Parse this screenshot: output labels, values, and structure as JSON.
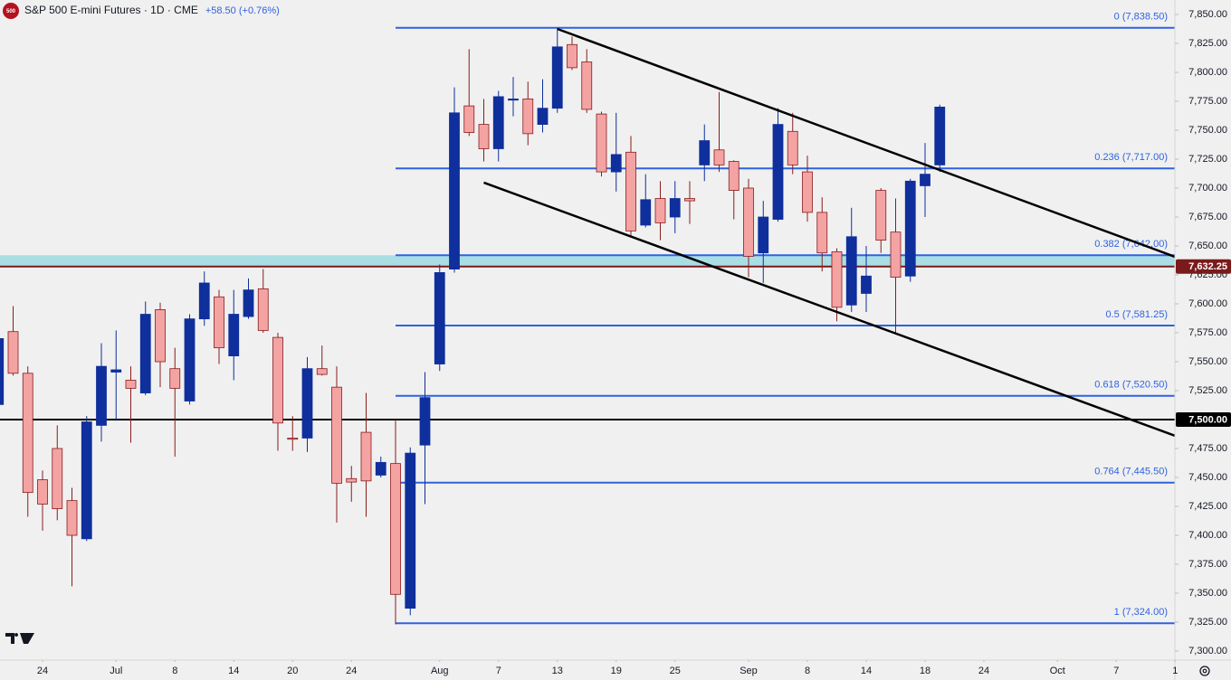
{
  "chart_data": {
    "type": "candlestick",
    "title": "S&P 500 E-mini Futures · 1D · CME",
    "change": "+58.50 (+0.76%)",
    "symbol_badge": "500",
    "up_color": "#0f2f9c",
    "down_color": "#f4a3a3",
    "down_edge": "#8a1c1c",
    "ylim": [
      7300,
      7850
    ],
    "yticks": [
      {
        "value": 7850,
        "label": "7,850.00"
      },
      {
        "value": 7825,
        "label": "7,825.00"
      },
      {
        "value": 7800,
        "label": "7,800.00"
      },
      {
        "value": 7775,
        "label": "7,775.00"
      },
      {
        "value": 7750,
        "label": "7,750.00"
      },
      {
        "value": 7725,
        "label": "7,725.00"
      },
      {
        "value": 7700,
        "label": "7,700.00"
      },
      {
        "value": 7675,
        "label": "7,675.00"
      },
      {
        "value": 7650,
        "label": "7,650.00"
      },
      {
        "value": 7625,
        "label": "7,625.00"
      },
      {
        "value": 7600,
        "label": "7,600.00"
      },
      {
        "value": 7575,
        "label": "7,575.00"
      },
      {
        "value": 7550,
        "label": "7,550.00"
      },
      {
        "value": 7525,
        "label": "7,525.00"
      },
      {
        "value": 7500,
        "label": "7,500.00"
      },
      {
        "value": 7475,
        "label": "7,475.00"
      },
      {
        "value": 7450,
        "label": "7,450.00"
      },
      {
        "value": 7425,
        "label": "7,425.00"
      },
      {
        "value": 7400,
        "label": "7,400.00"
      },
      {
        "value": 7375,
        "label": "7,375.00"
      },
      {
        "value": 7350,
        "label": "7,350.00"
      },
      {
        "value": 7325,
        "label": "7,325.00"
      },
      {
        "value": 7300,
        "label": "7,300.00"
      }
    ],
    "xlim": [
      -0.1,
      80
    ],
    "xticks": [
      {
        "value": 3,
        "label": "24"
      },
      {
        "value": 8,
        "label": "Jul"
      },
      {
        "value": 12,
        "label": "8"
      },
      {
        "value": 16,
        "label": "14"
      },
      {
        "value": 20,
        "label": "20"
      },
      {
        "value": 24,
        "label": "24"
      },
      {
        "value": 30,
        "label": "Aug"
      },
      {
        "value": 34,
        "label": "7"
      },
      {
        "value": 38,
        "label": "13"
      },
      {
        "value": 42,
        "label": "19"
      },
      {
        "value": 46,
        "label": "25"
      },
      {
        "value": 51,
        "label": "Sep"
      },
      {
        "value": 55,
        "label": "8"
      },
      {
        "value": 59,
        "label": "14"
      },
      {
        "value": 63,
        "label": "18"
      },
      {
        "value": 67,
        "label": "24"
      },
      {
        "value": 72,
        "label": "Oct"
      },
      {
        "value": 76,
        "label": "7"
      },
      {
        "value": 80,
        "label": "1"
      }
    ],
    "candles": [
      {
        "open": 7513,
        "high": 7577,
        "low": 7511,
        "close": 7570
      },
      {
        "open": 7576,
        "high": 7598,
        "low": 7538,
        "close": 7540
      },
      {
        "open": 7540,
        "high": 7546,
        "low": 7416,
        "close": 7437
      },
      {
        "open": 7448,
        "high": 7456,
        "low": 7404,
        "close": 7427
      },
      {
        "open": 7475,
        "high": 7495,
        "low": 7413,
        "close": 7423
      },
      {
        "open": 7430,
        "high": 7441,
        "low": 7356,
        "close": 7400
      },
      {
        "open": 7397,
        "high": 7503,
        "low": 7395,
        "close": 7498
      },
      {
        "open": 7495,
        "high": 7566,
        "low": 7481,
        "close": 7546
      },
      {
        "open": 7541,
        "high": 7577,
        "low": 7499,
        "close": 7543
      },
      {
        "open": 7534,
        "high": 7546,
        "low": 7480,
        "close": 7527
      },
      {
        "open": 7523,
        "high": 7602,
        "low": 7521,
        "close": 7591
      },
      {
        "open": 7595,
        "high": 7601,
        "low": 7528,
        "close": 7550
      },
      {
        "open": 7544,
        "high": 7562,
        "low": 7468,
        "close": 7527
      },
      {
        "open": 7516,
        "high": 7591,
        "low": 7513,
        "close": 7587
      },
      {
        "open": 7587,
        "high": 7628,
        "low": 7581,
        "close": 7618
      },
      {
        "open": 7606,
        "high": 7612,
        "low": 7548,
        "close": 7562
      },
      {
        "open": 7555,
        "high": 7612,
        "low": 7534,
        "close": 7591
      },
      {
        "open": 7589,
        "high": 7622,
        "low": 7587,
        "close": 7612
      },
      {
        "open": 7613,
        "high": 7630,
        "low": 7575,
        "close": 7577
      },
      {
        "open": 7571,
        "high": 7575,
        "low": 7473,
        "close": 7497
      },
      {
        "open": 7484,
        "high": 7503,
        "low": 7473,
        "close": 7483
      },
      {
        "open": 7484,
        "high": 7554,
        "low": 7472,
        "close": 7544
      },
      {
        "open": 7544,
        "high": 7564,
        "low": 7538,
        "close": 7539
      },
      {
        "open": 7528,
        "high": 7546,
        "low": 7411,
        "close": 7445
      },
      {
        "open": 7449,
        "high": 7460,
        "low": 7429,
        "close": 7446
      },
      {
        "open": 7489,
        "high": 7523,
        "low": 7416,
        "close": 7447
      },
      {
        "open": 7452,
        "high": 7468,
        "low": 7450,
        "close": 7463
      },
      {
        "open": 7462,
        "high": 7499,
        "low": 7323,
        "close": 7349
      },
      {
        "open": 7337,
        "high": 7476,
        "low": 7331,
        "close": 7471
      },
      {
        "open": 7478,
        "high": 7541,
        "low": 7427,
        "close": 7519
      },
      {
        "open": 7548,
        "high": 7634,
        "low": 7542,
        "close": 7627
      },
      {
        "open": 7630,
        "high": 7787,
        "low": 7627,
        "close": 7765
      },
      {
        "open": 7771,
        "high": 7820,
        "low": 7745,
        "close": 7748
      },
      {
        "open": 7755,
        "high": 7777,
        "low": 7723,
        "close": 7734
      },
      {
        "open": 7734,
        "high": 7784,
        "low": 7723,
        "close": 7779
      },
      {
        "open": 7776,
        "high": 7796,
        "low": 7762,
        "close": 7777
      },
      {
        "open": 7777,
        "high": 7792,
        "low": 7737,
        "close": 7747
      },
      {
        "open": 7755,
        "high": 7794,
        "low": 7748,
        "close": 7769
      },
      {
        "open": 7769,
        "high": 7838,
        "low": 7765,
        "close": 7822
      },
      {
        "open": 7824,
        "high": 7831,
        "low": 7802,
        "close": 7804
      },
      {
        "open": 7809,
        "high": 7820,
        "low": 7765,
        "close": 7768
      },
      {
        "open": 7764,
        "high": 7766,
        "low": 7710,
        "close": 7714
      },
      {
        "open": 7714,
        "high": 7765,
        "low": 7697,
        "close": 7729
      },
      {
        "open": 7731,
        "high": 7745,
        "low": 7659,
        "close": 7663
      },
      {
        "open": 7668,
        "high": 7712,
        "low": 7666,
        "close": 7690
      },
      {
        "open": 7691,
        "high": 7706,
        "low": 7655,
        "close": 7670
      },
      {
        "open": 7675,
        "high": 7706,
        "low": 7661,
        "close": 7691
      },
      {
        "open": 7691,
        "high": 7706,
        "low": 7669,
        "close": 7689
      },
      {
        "open": 7720,
        "high": 7755,
        "low": 7706,
        "close": 7741
      },
      {
        "open": 7733,
        "high": 7783,
        "low": 7714,
        "close": 7720
      },
      {
        "open": 7723,
        "high": 7724,
        "low": 7673,
        "close": 7698
      },
      {
        "open": 7700,
        "high": 7708,
        "low": 7623,
        "close": 7641
      },
      {
        "open": 7644,
        "high": 7689,
        "low": 7618,
        "close": 7675
      },
      {
        "open": 7673,
        "high": 7769,
        "low": 7671,
        "close": 7755
      },
      {
        "open": 7749,
        "high": 7765,
        "low": 7712,
        "close": 7720
      },
      {
        "open": 7714,
        "high": 7728,
        "low": 7671,
        "close": 7679
      },
      {
        "open": 7679,
        "high": 7692,
        "low": 7628,
        "close": 7644
      },
      {
        "open": 7645,
        "high": 7648,
        "low": 7585,
        "close": 7597
      },
      {
        "open": 7599,
        "high": 7683,
        "low": 7593,
        "close": 7658
      },
      {
        "open": 7609,
        "high": 7650,
        "low": 7593,
        "close": 7624
      },
      {
        "open": 7698,
        "high": 7700,
        "low": 7644,
        "close": 7655
      },
      {
        "open": 7662,
        "high": 7691,
        "low": 7575,
        "close": 7623
      },
      {
        "open": 7624,
        "high": 7708,
        "low": 7619,
        "close": 7706
      },
      {
        "open": 7702,
        "high": 7739,
        "low": 7675,
        "close": 7712
      },
      {
        "open": 7720,
        "high": 7772,
        "low": 7714,
        "close": 7770
      }
    ],
    "fib_levels": [
      {
        "value": 7838.5,
        "label": "0 (7,838.50)"
      },
      {
        "value": 7717,
        "label": "0.236 (7,717.00)"
      },
      {
        "value": 7642,
        "label": "0.382 (7,642.00)"
      },
      {
        "value": 7581.25,
        "label": "0.5 (7,581.25)"
      },
      {
        "value": 7520.5,
        "label": "0.618 (7,520.50)"
      },
      {
        "value": 7445.5,
        "label": "0.764 (7,445.50)"
      },
      {
        "value": 7324,
        "label": "1 (7,324.00)"
      }
    ],
    "fib_color": "#2f62e0",
    "zone": {
      "from": 7632.25,
      "to": 7642,
      "color": "#a9dfe4"
    },
    "levels": [
      {
        "value": 7632.25,
        "label": "7,632.25",
        "color": "#7a1a1a"
      },
      {
        "value": 7500,
        "label": "7,500.00",
        "color": "#000000"
      }
    ],
    "trendlines": [
      {
        "points": [
          [
            38,
            7837.5
          ],
          [
            80,
            7640.6
          ]
        ]
      },
      {
        "points": [
          [
            33,
            7704.7
          ],
          [
            80,
            7486
          ]
        ]
      }
    ]
  }
}
